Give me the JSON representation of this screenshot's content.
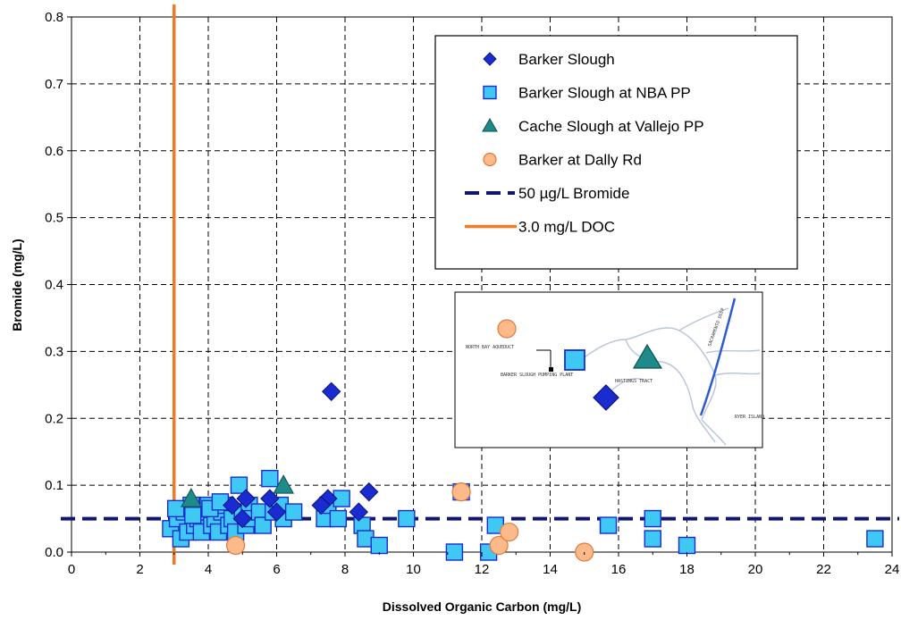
{
  "chart_data": {
    "type": "scatter",
    "title": "",
    "xlabel": "Dissolved Organic Carbon (mg/L)",
    "ylabel": "Bromide (mg/L)",
    "xlim": [
      0,
      24
    ],
    "ylim": [
      0,
      0.8
    ],
    "x_ticks": [
      "0",
      "2",
      "4",
      "6",
      "8",
      "10",
      "12",
      "14",
      "16",
      "18",
      "20",
      "22",
      "24"
    ],
    "y_ticks": [
      "0.0",
      "0.1",
      "0.2",
      "0.3",
      "0.4",
      "0.5",
      "0.6",
      "0.7",
      "0.8"
    ],
    "grid": true,
    "legend_position": "top-right",
    "series": [
      {
        "name": "Barker Slough",
        "marker": "diamond",
        "color": "#1a2bd0",
        "points": [
          [
            7.6,
            0.24
          ],
          [
            8.7,
            0.09
          ],
          [
            7.5,
            0.08
          ],
          [
            7.3,
            0.07
          ],
          [
            8.4,
            0.06
          ],
          [
            5.1,
            0.08
          ],
          [
            5.8,
            0.08
          ],
          [
            4.7,
            0.07
          ],
          [
            6.0,
            0.06
          ],
          [
            5.0,
            0.05
          ]
        ]
      },
      {
        "name": "Barker Slough at NBA PP",
        "marker": "square",
        "color": "#3fc8f4",
        "points": [
          [
            2.9,
            0.035
          ],
          [
            3.1,
            0.05
          ],
          [
            3.2,
            0.02
          ],
          [
            3.3,
            0.06
          ],
          [
            3.4,
            0.03
          ],
          [
            3.5,
            0.07
          ],
          [
            3.6,
            0.04
          ],
          [
            3.7,
            0.05
          ],
          [
            3.8,
            0.03
          ],
          [
            3.9,
            0.06
          ],
          [
            4.0,
            0.07
          ],
          [
            4.1,
            0.04
          ],
          [
            4.2,
            0.05
          ],
          [
            4.3,
            0.03
          ],
          [
            4.4,
            0.06
          ],
          [
            4.5,
            0.07
          ],
          [
            4.6,
            0.04
          ],
          [
            4.7,
            0.05
          ],
          [
            4.8,
            0.03
          ],
          [
            4.9,
            0.1
          ],
          [
            5.0,
            0.06
          ],
          [
            5.1,
            0.04
          ],
          [
            5.2,
            0.07
          ],
          [
            5.3,
            0.05
          ],
          [
            5.5,
            0.06
          ],
          [
            5.6,
            0.04
          ],
          [
            5.8,
            0.11
          ],
          [
            5.9,
            0.06
          ],
          [
            6.1,
            0.07
          ],
          [
            6.2,
            0.05
          ],
          [
            6.5,
            0.06
          ],
          [
            7.4,
            0.05
          ],
          [
            7.5,
            0.07
          ],
          [
            7.8,
            0.05
          ],
          [
            7.9,
            0.08
          ],
          [
            8.5,
            0.04
          ],
          [
            8.6,
            0.02
          ],
          [
            9.0,
            0.01
          ],
          [
            9.8,
            0.05
          ],
          [
            11.2,
            0.0
          ],
          [
            11.4,
            0.09
          ],
          [
            12.2,
            0.0
          ],
          [
            12.4,
            0.04
          ],
          [
            15.7,
            0.04
          ],
          [
            17.0,
            0.05
          ],
          [
            17.0,
            0.02
          ],
          [
            18.0,
            0.01
          ],
          [
            23.5,
            0.02
          ],
          [
            3.05,
            0.065
          ],
          [
            3.55,
            0.055
          ],
          [
            4.05,
            0.065
          ],
          [
            4.35,
            0.075
          ]
        ]
      },
      {
        "name": "Cache Slough at Vallejo PP",
        "marker": "triangle",
        "color": "#1e8a8a",
        "points": [
          [
            3.5,
            0.08
          ],
          [
            6.2,
            0.1
          ]
        ]
      },
      {
        "name": "Barker at Dally Rd",
        "marker": "circle",
        "color": "#fcb98a",
        "points": [
          [
            4.8,
            0.01
          ],
          [
            11.4,
            0.09
          ],
          [
            12.5,
            0.01
          ],
          [
            12.8,
            0.03
          ],
          [
            15.0,
            0.0
          ]
        ]
      }
    ],
    "reference_lines": [
      {
        "name": "50 µg/L Bromide",
        "orientation": "horizontal",
        "value": 0.05,
        "color": "#12166e",
        "style": "dashed"
      },
      {
        "name": "3.0 mg/L DOC",
        "orientation": "vertical",
        "value": 3.0,
        "color": "#f07a22",
        "style": "solid"
      }
    ]
  },
  "inset_map": {
    "labels": [
      "NORTH BAY AQUEDUCT",
      "BARKER SLOUGH PUMPING PLANT",
      "HASTINGS TRACT",
      "SACRAMENTO DEEP",
      "RYER ISLAND"
    ]
  }
}
